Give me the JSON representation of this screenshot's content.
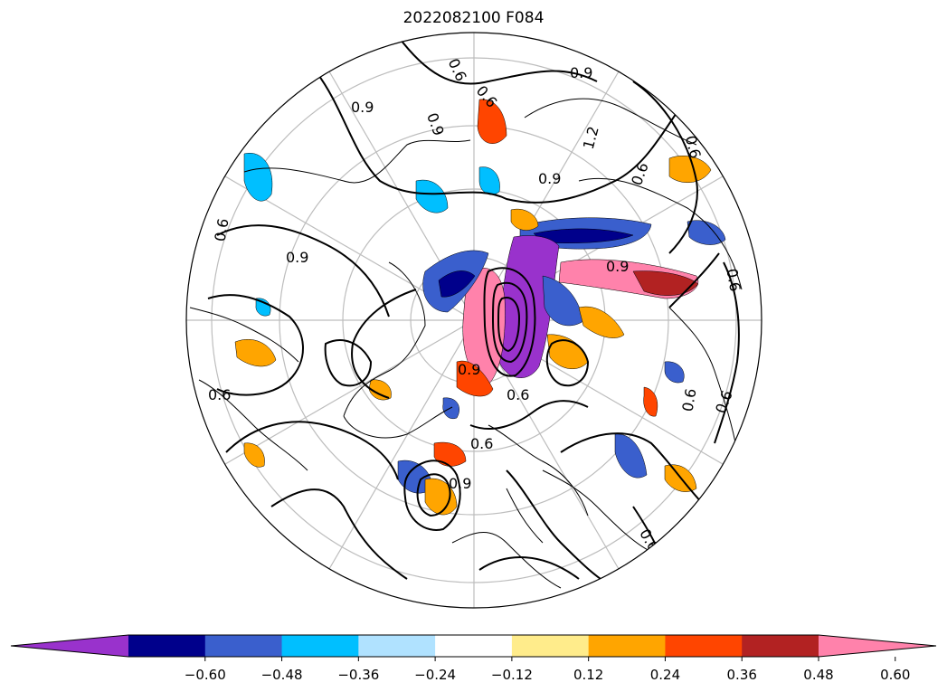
{
  "title": "2022082100 F084",
  "projection": "north-polar-stereographic",
  "contour_labels": [
    "0.6",
    "0.9",
    "0.6",
    "0.9",
    "0.9",
    "1.2",
    "0.6",
    "0.9",
    "0.6",
    "0.6",
    "0.9",
    "0.9",
    "0.6",
    "0.6",
    "0.6",
    "0.6",
    "0.9",
    "0.6",
    "0.9",
    "0.6",
    "0.6"
  ],
  "colorbar": {
    "ticks": [
      "−0.60",
      "−0.48",
      "−0.36",
      "−0.24",
      "−0.12",
      "0.12",
      "0.24",
      "0.36",
      "0.48",
      "0.60"
    ],
    "extend": "both",
    "colors": [
      "#9932CC",
      "#00008B",
      "#3A5FCD",
      "#00BFFF",
      "#B0E2FF",
      "#FFFFFF",
      "#FFEC8B",
      "#FFA500",
      "#FF4500",
      "#B22222",
      "#FF82AB"
    ]
  }
}
